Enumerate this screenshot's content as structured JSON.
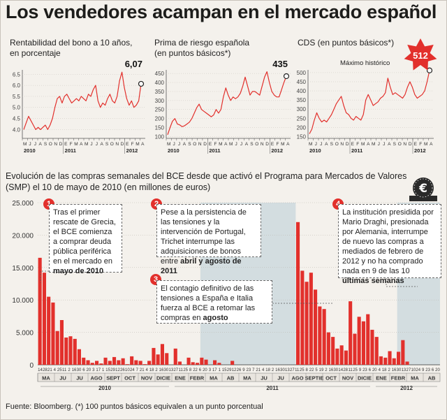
{
  "title": "Los vendedores acampan en el mercado español",
  "source": "Fuente: Bloomberg. (*) 100 puntos básicos equivalen a un punto porcentual",
  "colors": {
    "line": "#e2302c",
    "bar": "#e2302c",
    "shade": "#d3dde0",
    "accent": "#e2302c"
  },
  "small_charts": [
    {
      "title": "Rentabilidad del bono a 10 años,\nen porcentaje",
      "last_value": "6,07",
      "yticks": [
        "6.5",
        "6.0",
        "5.5",
        "5.0",
        "4.5",
        "4.0"
      ],
      "ymin": 3.6,
      "ymax": 6.7,
      "months": [
        "M",
        "J",
        "J",
        "A",
        "S",
        "O",
        "N",
        "D",
        "E",
        "F",
        "M",
        "A",
        "M",
        "J",
        "J",
        "A",
        "S",
        "O",
        "N",
        "D",
        "E",
        "F",
        "M",
        "A"
      ],
      "years": [
        "2010",
        "2011",
        "2012"
      ]
    },
    {
      "title": "Prima de riesgo española\n(en puntos básicos*)",
      "last_value": "435",
      "yticks": [
        "450",
        "400",
        "350",
        "300",
        "250",
        "200",
        "150",
        "100"
      ],
      "ymin": 90,
      "ymax": 470,
      "months": [
        "M",
        "J",
        "J",
        "A",
        "S",
        "O",
        "N",
        "D",
        "E",
        "F",
        "M",
        "A",
        "M",
        "J",
        "J",
        "A",
        "S",
        "O",
        "N",
        "D",
        "E",
        "F",
        "M",
        "A"
      ],
      "years": [
        "2010",
        "2011",
        "2012"
      ]
    },
    {
      "title": "CDS (en puntos básicos*)",
      "last_value": "512",
      "note": "Máximo histórico",
      "yticks": [
        "500",
        "450",
        "400",
        "350",
        "300",
        "250",
        "200",
        "150"
      ],
      "ymin": 140,
      "ymax": 515,
      "months": [
        "M",
        "J",
        "J",
        "A",
        "S",
        "O",
        "N",
        "D",
        "E",
        "F",
        "M",
        "A",
        "M",
        "J",
        "J",
        "A",
        "S",
        "O",
        "N",
        "D",
        "E",
        "F",
        "M",
        "A"
      ],
      "years": [
        "2010",
        "2011",
        "2012"
      ]
    }
  ],
  "main": {
    "title": "Evolución de las compras semanales del BCE desde que activó el Programa para Mercados de Valores (SMP) el 10 de mayo de 2010 (en millones de euros)",
    "yticks": [
      "25.000",
      "20.000",
      "15.000",
      "10.000",
      "5.000",
      "0"
    ],
    "months": [
      "MA",
      "JU",
      "JU",
      "AGO",
      "SEPT",
      "OCT",
      "NOV",
      "DICIE",
      "ENE",
      "FEBR",
      "MA",
      "AB",
      "MA",
      "JU",
      "JU",
      "AGO",
      "SEPTIE",
      "OCT",
      "NOV",
      "DICIE",
      "ENE",
      "FEBR",
      "MA",
      "AB"
    ],
    "years": [
      "2010",
      "2011",
      "2012"
    ],
    "week_labels": [
      "14",
      "28",
      "21",
      "4",
      "25",
      "11",
      "2",
      "16",
      "30",
      "6",
      "20",
      "3",
      "17",
      "1",
      "15",
      "29",
      "12",
      "26",
      "10",
      "24",
      "7",
      "21",
      "4",
      "18",
      "2",
      "16",
      "30",
      "13",
      "27",
      "11",
      "25",
      "8",
      "22",
      "6",
      "20",
      "3",
      "17",
      "1",
      "15",
      "29",
      "12",
      "26",
      "9",
      "23",
      "7",
      "21",
      "4",
      "18",
      "2",
      "16",
      "30",
      "13",
      "27",
      "11",
      "25",
      "8",
      "22",
      "5",
      "19",
      "2",
      "16",
      "30",
      "14",
      "28",
      "11",
      "25",
      "9",
      "23",
      "6",
      "20",
      "4",
      "18",
      "2",
      "16",
      "30",
      "13",
      "27",
      "10",
      "24",
      "9",
      "23",
      "6",
      "20"
    ]
  },
  "annotations": [
    {
      "num": "1",
      "text": "Tras el primer rescate de Grecia, el BCE comienza a comprar deuda pública periférica en el mercado en ",
      "bold": "mayo de 2010"
    },
    {
      "num": "2",
      "text": "Pese a la persistencia de las tensiones y la intervención de Portugal, Trichet interrumpe las adquisiciones de bonos entre ",
      "bold": "abril y agosto de 2011"
    },
    {
      "num": "3",
      "text": "El contagio definitivo de las tensiones a España e Italia fuerza al BCE a retomar las compras en ",
      "bold": "agosto"
    },
    {
      "num": "4",
      "text": "La institución presidida por Mario Draghi, presionada por Alemania, interrumpe de nuevo las compras a mediados de febrero de 2012 y no ha comprado nada en 9 de las 10 ",
      "bold": "últimas semanas"
    }
  ],
  "chart_data": [
    {
      "type": "line",
      "title": "Rentabilidad del bono a 10 años, en porcentaje",
      "ylim": [
        3.6,
        6.7
      ],
      "series": [
        {
          "values": [
            4.0,
            4.3,
            4.6,
            4.4,
            4.2,
            4.0,
            4.1,
            4.0,
            4.1,
            4.2,
            4.0,
            4.2,
            4.5,
            5.0,
            5.4,
            5.5,
            5.2,
            5.5,
            5.6,
            5.4,
            5.2,
            5.3,
            5.4,
            5.3,
            5.5,
            5.4,
            5.3,
            5.6,
            5.5,
            5.8,
            6.0,
            5.3,
            5.0,
            5.2,
            5.1,
            5.4,
            5.6,
            5.3,
            5.2,
            5.5,
            6.2,
            6.6,
            5.9,
            5.4,
            5.1,
            5.3,
            5.0,
            5.1,
            5.3,
            6.07
          ]
        }
      ]
    },
    {
      "type": "line",
      "title": "Prima de riesgo española (en puntos básicos*)",
      "ylim": [
        90,
        470
      ],
      "series": [
        {
          "values": [
            110,
            150,
            185,
            200,
            170,
            165,
            155,
            160,
            170,
            180,
            200,
            230,
            260,
            280,
            250,
            240,
            230,
            220,
            210,
            220,
            250,
            230,
            250,
            320,
            370,
            330,
            300,
            320,
            310,
            320,
            340,
            380,
            430,
            380,
            330,
            350,
            350,
            340,
            330,
            380,
            430,
            460,
            400,
            350,
            330,
            320,
            320,
            360,
            400,
            435
          ]
        }
      ]
    },
    {
      "type": "line",
      "title": "CDS (en puntos básicos*)",
      "ylim": [
        140,
        515
      ],
      "series": [
        {
          "values": [
            165,
            190,
            240,
            280,
            250,
            230,
            240,
            230,
            250,
            270,
            300,
            330,
            350,
            370,
            320,
            280,
            270,
            250,
            240,
            260,
            250,
            240,
            270,
            350,
            380,
            350,
            320,
            330,
            340,
            360,
            370,
            390,
            470,
            420,
            380,
            390,
            380,
            370,
            360,
            380,
            420,
            450,
            420,
            380,
            360,
            370,
            380,
            400,
            450,
            512
          ]
        }
      ]
    },
    {
      "type": "bar",
      "title": "Evolución de las compras semanales del BCE desde que activó el Programa para Mercados de Valores (SMP) el 10 de mayo de 2010 (en millones de euros)",
      "ylim": [
        0,
        25000
      ],
      "values": [
        16500,
        14200,
        10500,
        9600,
        5200,
        6900,
        4200,
        4400,
        4000,
        2400,
        1100,
        700,
        300,
        600,
        200,
        1100,
        600,
        1200,
        700,
        1000,
        100,
        1300,
        700,
        600,
        100,
        600,
        2600,
        1600,
        3200,
        1800,
        0,
        2500,
        500,
        0,
        1100,
        400,
        300,
        1100,
        800,
        0,
        700,
        300,
        0,
        0,
        600,
        0,
        0,
        0,
        0,
        0,
        0,
        0,
        0,
        0,
        0,
        0,
        0,
        0,
        0,
        22000,
        14500,
        12800,
        14200,
        11600,
        9000,
        8600,
        5000,
        4300,
        2500,
        3000,
        2200,
        9800,
        4800,
        7400,
        6700,
        7800,
        5400,
        4300,
        1300,
        1100,
        2100,
        1000,
        2000,
        3800,
        500,
        0,
        0,
        0,
        0,
        0,
        0,
        0
      ]
    }
  ]
}
